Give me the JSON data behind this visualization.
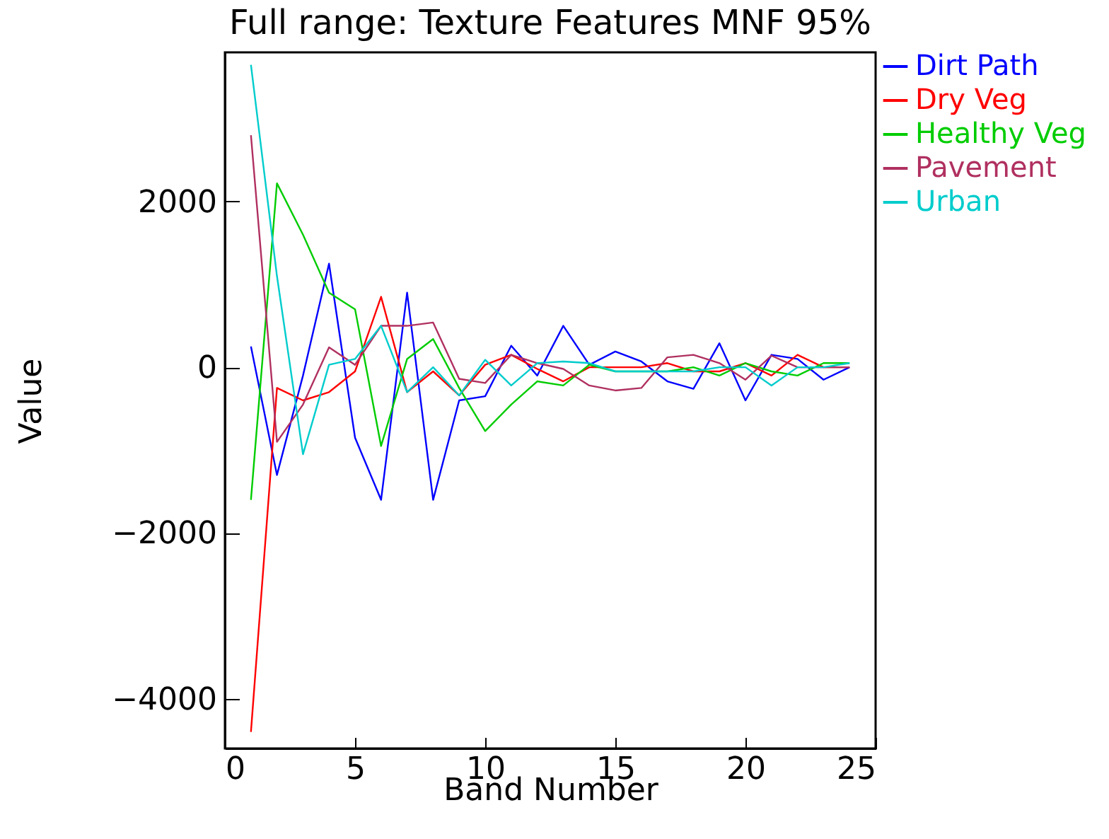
{
  "chart_data": {
    "type": "line",
    "title": "Full range: Texture Features MNF 95%",
    "xlabel": "Band Number",
    "ylabel": "Value",
    "x": [
      1,
      2,
      3,
      4,
      5,
      6,
      7,
      8,
      9,
      10,
      11,
      12,
      13,
      14,
      15,
      16,
      17,
      18,
      19,
      20,
      21,
      22,
      23,
      24
    ],
    "xlim": [
      0,
      25
    ],
    "xticks": [
      0,
      5,
      10,
      15,
      20,
      25
    ],
    "ylim": [
      -4600,
      3800
    ],
    "yticks": [
      -4000,
      -2000,
      0,
      2000
    ],
    "grid": false,
    "legend": "top right",
    "series": [
      {
        "name": "Dirt Path",
        "color": "#0000ff",
        "values": [
          250,
          -1300,
          -100,
          1250,
          -850,
          -1600,
          900,
          -1600,
          -400,
          -350,
          260,
          -100,
          500,
          30,
          190,
          70,
          -170,
          -260,
          290,
          -400,
          150,
          100,
          -150,
          0
        ]
      },
      {
        "name": "Dry Veg",
        "color": "#ff0000",
        "values": [
          -4400,
          -250,
          -400,
          -300,
          -50,
          850,
          -300,
          -50,
          -340,
          30,
          150,
          -20,
          -170,
          0,
          0,
          0,
          50,
          -50,
          -50,
          50,
          -100,
          150,
          0,
          0
        ]
      },
      {
        "name": "Healthy Veg",
        "color": "#00cc00",
        "values": [
          -1600,
          2220,
          1600,
          900,
          700,
          -950,
          100,
          340,
          -250,
          -770,
          -450,
          -170,
          -220,
          30,
          -50,
          -50,
          -50,
          0,
          -100,
          50,
          -50,
          -100,
          50,
          50
        ]
      },
      {
        "name": "Pavement",
        "color": "#b03060",
        "values": [
          2800,
          -900,
          -450,
          240,
          30,
          500,
          500,
          540,
          -140,
          -190,
          150,
          50,
          -20,
          -220,
          -280,
          -250,
          120,
          150,
          50,
          -150,
          140,
          0,
          0,
          0
        ]
      },
      {
        "name": "Urban",
        "color": "#00cccc",
        "values": [
          3650,
          1100,
          -1050,
          30,
          100,
          500,
          -300,
          0,
          -340,
          90,
          -220,
          50,
          70,
          50,
          -50,
          -50,
          -50,
          -50,
          0,
          0,
          -220,
          0,
          0,
          50
        ]
      }
    ]
  }
}
